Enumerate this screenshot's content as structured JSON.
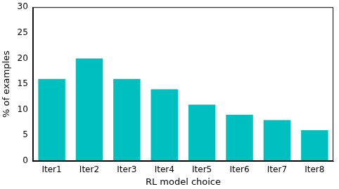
{
  "chart_data": {
    "type": "bar",
    "categories": [
      "Iter1",
      "Iter2",
      "Iter3",
      "Iter4",
      "Iter5",
      "Iter6",
      "Iter7",
      "Iter8"
    ],
    "values": [
      16,
      20,
      16,
      14,
      11,
      9,
      8,
      6
    ],
    "color": "#00bfbf",
    "x_label": "RL model choice",
    "y_label": "% of examples",
    "ylim": [
      0,
      30
    ],
    "yticks": [
      0,
      5,
      10,
      15,
      20,
      25,
      30
    ],
    "grid": false
  }
}
